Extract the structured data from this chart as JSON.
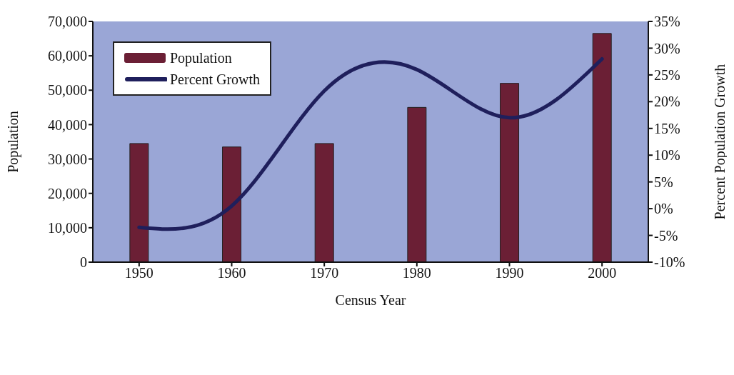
{
  "chart_data": {
    "type": "bar",
    "xlabel": "Census Year",
    "ylabel": "Population",
    "y2label": "Percent Population Growth",
    "categories": [
      "1950",
      "1960",
      "1970",
      "1980",
      "1990",
      "2000"
    ],
    "series": [
      {
        "name": "Population",
        "color": "#6b1f35",
        "values": [
          34500,
          33500,
          34500,
          45000,
          52000,
          66500
        ]
      },
      {
        "name": "Percent Growth",
        "type": "line",
        "axis": "y2",
        "color": "#1f1f5c",
        "values": [
          -3.5,
          0.5,
          22,
          26,
          17,
          28
        ]
      }
    ],
    "ylim": [
      0,
      70000
    ],
    "yticks": [
      {
        "value": 0,
        "label": "0"
      },
      {
        "value": 10000,
        "label": "10,000"
      },
      {
        "value": 20000,
        "label": "20,000"
      },
      {
        "value": 30000,
        "label": "30,000"
      },
      {
        "value": 40000,
        "label": "40,000"
      },
      {
        "value": 50000,
        "label": "50,000"
      },
      {
        "value": 60000,
        "label": "60,000"
      },
      {
        "value": 70000,
        "label": "70,000"
      }
    ],
    "y2lim": [
      -10,
      35
    ],
    "y2ticks": [
      {
        "value": -10,
        "label": "-10%"
      },
      {
        "value": -5,
        "label": "-5%"
      },
      {
        "value": 0,
        "label": "0%"
      },
      {
        "value": 5,
        "label": "5%"
      },
      {
        "value": 10,
        "label": "10%"
      },
      {
        "value": 15,
        "label": "15%"
      },
      {
        "value": 20,
        "label": "20%"
      },
      {
        "value": 25,
        "label": "25%"
      },
      {
        "value": 30,
        "label": "30%"
      },
      {
        "value": 35,
        "label": "35%"
      }
    ],
    "grid": false,
    "legend": "top left",
    "marker": "none",
    "line_style": "solid"
  }
}
